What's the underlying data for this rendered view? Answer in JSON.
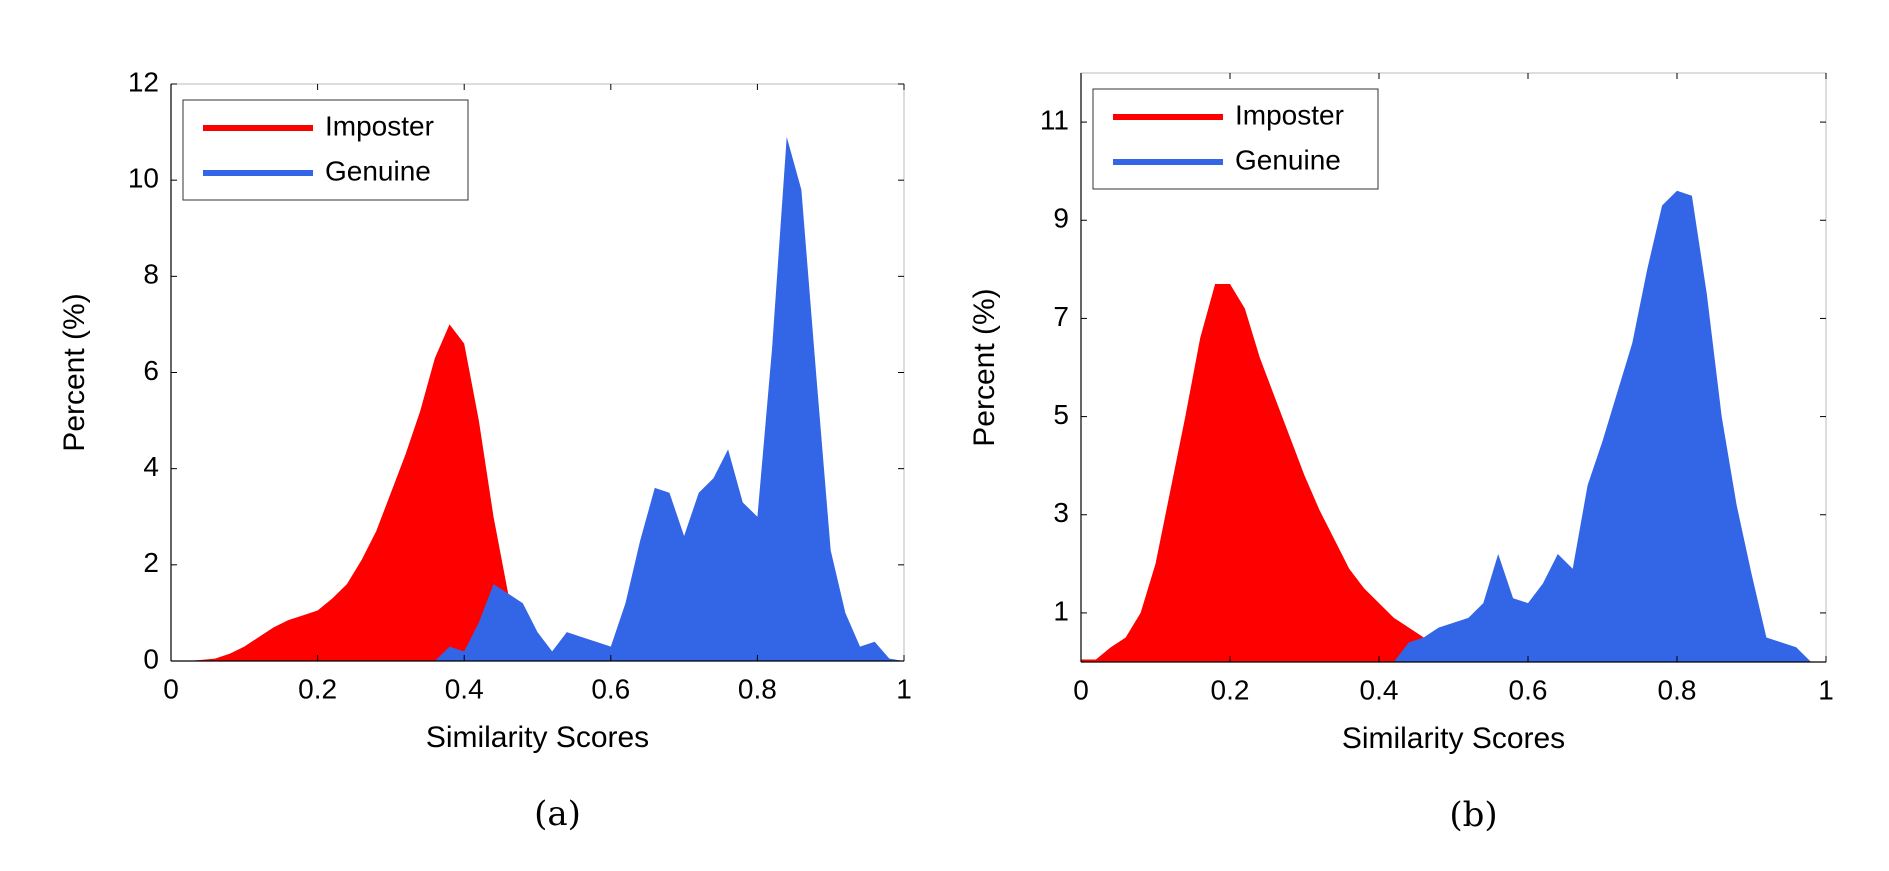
{
  "chart_data": [
    {
      "type": "area",
      "caption": "(a)",
      "xlabel": "Similarity Scores",
      "ylabel": "Percent (%)",
      "x": [
        0,
        0.02,
        0.04,
        0.06,
        0.08,
        0.1,
        0.12,
        0.14,
        0.16,
        0.18,
        0.2,
        0.22,
        0.24,
        0.26,
        0.28,
        0.3,
        0.32,
        0.34,
        0.36,
        0.38,
        0.4,
        0.42,
        0.44,
        0.46,
        0.48,
        0.5,
        0.52,
        0.54,
        0.56,
        0.58,
        0.6,
        0.62,
        0.64,
        0.66,
        0.68,
        0.7,
        0.72,
        0.74,
        0.76,
        0.78,
        0.8,
        0.82,
        0.84,
        0.86,
        0.88,
        0.9,
        0.92,
        0.94,
        0.96,
        0.98,
        1
      ],
      "series": [
        {
          "name": "Imposter",
          "color": "#ff0000",
          "values": [
            0,
            0,
            0.02,
            0.05,
            0.15,
            0.3,
            0.5,
            0.7,
            0.85,
            0.95,
            1.05,
            1.3,
            1.6,
            2.1,
            2.7,
            3.5,
            4.3,
            5.2,
            6.3,
            7.0,
            6.6,
            5.0,
            3.0,
            1.4,
            0.6,
            0.3,
            0.1,
            0.05,
            0,
            0,
            0,
            0,
            0,
            0,
            0,
            0,
            0,
            0,
            0,
            0,
            0,
            0,
            0,
            0,
            0,
            0,
            0,
            0,
            0,
            0,
            0
          ]
        },
        {
          "name": "Genuine",
          "color": "#3366e6",
          "values": [
            0,
            0,
            0,
            0,
            0,
            0,
            0,
            0,
            0,
            0,
            0,
            0,
            0,
            0,
            0,
            0,
            0,
            0,
            0,
            0.3,
            0.2,
            0.8,
            1.6,
            1.4,
            1.2,
            0.6,
            0.2,
            0.6,
            0.5,
            0.4,
            0.3,
            1.2,
            2.5,
            3.6,
            3.5,
            2.6,
            3.5,
            3.8,
            4.4,
            3.3,
            3.0,
            6.5,
            10.9,
            9.8,
            6.0,
            2.3,
            1.0,
            0.3,
            0.4,
            0.05,
            0
          ]
        }
      ],
      "xlim": [
        0,
        1
      ],
      "xticks": [
        0,
        0.2,
        0.4,
        0.6,
        0.8,
        1
      ],
      "ylim": [
        0,
        12
      ],
      "yticks": [
        0,
        2,
        4,
        6,
        8,
        10,
        12
      ],
      "legend": "upper left"
    },
    {
      "type": "area",
      "caption": "(b)",
      "xlabel": "Similarity Scores",
      "ylabel": "Percent (%)",
      "x": [
        0,
        0.02,
        0.04,
        0.06,
        0.08,
        0.1,
        0.12,
        0.14,
        0.16,
        0.18,
        0.2,
        0.22,
        0.24,
        0.26,
        0.28,
        0.3,
        0.32,
        0.34,
        0.36,
        0.38,
        0.4,
        0.42,
        0.44,
        0.46,
        0.48,
        0.5,
        0.52,
        0.54,
        0.56,
        0.58,
        0.6,
        0.62,
        0.64,
        0.66,
        0.68,
        0.7,
        0.72,
        0.74,
        0.76,
        0.78,
        0.8,
        0.82,
        0.84,
        0.86,
        0.88,
        0.9,
        0.92,
        0.94,
        0.96,
        0.98,
        1
      ],
      "series": [
        {
          "name": "Imposter",
          "color": "#ff0000",
          "values": [
            0.05,
            0.05,
            0.3,
            0.5,
            1.0,
            2.0,
            3.5,
            5.0,
            6.6,
            7.7,
            7.7,
            7.2,
            6.2,
            5.4,
            4.6,
            3.8,
            3.1,
            2.5,
            1.9,
            1.5,
            1.2,
            0.9,
            0.7,
            0.5,
            0.35,
            0.2,
            0.1,
            0.05,
            0.02,
            0,
            0,
            0,
            0,
            0,
            0,
            0,
            0,
            0,
            0,
            0,
            0,
            0,
            0,
            0,
            0,
            0,
            0,
            0,
            0,
            0,
            0
          ]
        },
        {
          "name": "Genuine",
          "color": "#3366e6",
          "values": [
            0,
            0,
            0,
            0,
            0,
            0,
            0,
            0,
            0,
            0,
            0,
            0,
            0,
            0,
            0,
            0,
            0,
            0,
            0,
            0,
            0,
            0,
            0.4,
            0.5,
            0.7,
            0.8,
            0.9,
            1.2,
            2.2,
            1.3,
            1.2,
            1.6,
            2.2,
            1.9,
            3.6,
            4.5,
            5.5,
            6.5,
            8.0,
            9.3,
            9.6,
            9.5,
            7.5,
            5.0,
            3.2,
            1.8,
            0.5,
            0.4,
            0.3,
            0,
            0
          ]
        }
      ],
      "xlim": [
        0,
        1
      ],
      "xticks": [
        0,
        0.2,
        0.4,
        0.6,
        0.8,
        1
      ],
      "ylim": [
        0,
        12
      ],
      "yticks": [
        1,
        3,
        5,
        7,
        9,
        11
      ],
      "legend": "upper left"
    }
  ]
}
